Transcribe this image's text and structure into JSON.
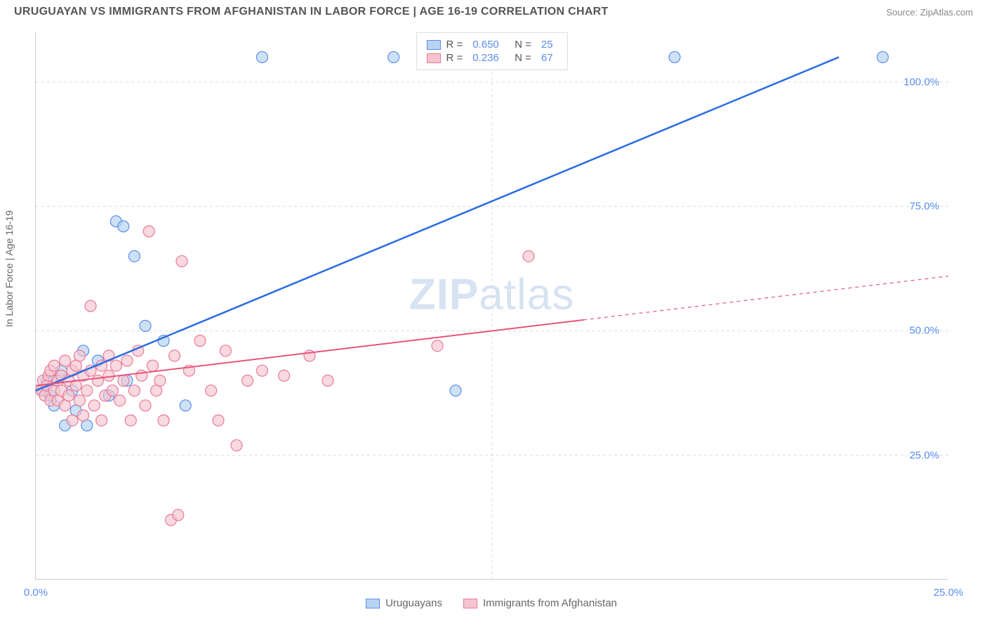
{
  "header": {
    "title": "URUGUAYAN VS IMMIGRANTS FROM AFGHANISTAN IN LABOR FORCE | AGE 16-19 CORRELATION CHART",
    "source": "Source: ZipAtlas.com"
  },
  "y_axis_label": "In Labor Force | Age 16-19",
  "watermark": {
    "part1": "ZIP",
    "part2": "atlas"
  },
  "chart": {
    "type": "scatter",
    "background_color": "#ffffff",
    "grid_color": "#dddddd",
    "grid_dash": "4,4",
    "axis_color": "#cccccc",
    "tick_label_color": "#5b8def",
    "tick_fontsize": 15,
    "xlim": [
      0,
      25
    ],
    "ylim": [
      0,
      110
    ],
    "x_ticks": [
      {
        "pos": 0,
        "label": "0.0%"
      },
      {
        "pos": 12.5,
        "label": ""
      },
      {
        "pos": 25,
        "label": "25.0%"
      }
    ],
    "y_ticks": [
      {
        "pos": 25,
        "label": "25.0%"
      },
      {
        "pos": 50,
        "label": "50.0%"
      },
      {
        "pos": 75,
        "label": "75.0%"
      },
      {
        "pos": 100,
        "label": "100.0%"
      }
    ],
    "series": [
      {
        "name": "Uruguayans",
        "marker_fill": "#b8d4f0",
        "marker_stroke": "#5b8def",
        "marker_opacity": 0.7,
        "marker_radius": 8,
        "line_color": "#2b6de0",
        "line_width": 2.5,
        "line_dash_after_x": null,
        "R": "0.650",
        "N": "25",
        "regression": {
          "x1": 0,
          "y1": 38,
          "x2": 22,
          "y2": 105
        },
        "points": [
          {
            "x": 0.2,
            "y": 38
          },
          {
            "x": 0.3,
            "y": 40
          },
          {
            "x": 0.4,
            "y": 37
          },
          {
            "x": 0.5,
            "y": 35
          },
          {
            "x": 0.5,
            "y": 40
          },
          {
            "x": 0.7,
            "y": 42
          },
          {
            "x": 0.8,
            "y": 31
          },
          {
            "x": 1.0,
            "y": 38
          },
          {
            "x": 1.1,
            "y": 34
          },
          {
            "x": 1.3,
            "y": 46
          },
          {
            "x": 1.4,
            "y": 31
          },
          {
            "x": 1.7,
            "y": 44
          },
          {
            "x": 2.0,
            "y": 37
          },
          {
            "x": 2.2,
            "y": 72
          },
          {
            "x": 2.4,
            "y": 71
          },
          {
            "x": 2.5,
            "y": 40
          },
          {
            "x": 2.7,
            "y": 65
          },
          {
            "x": 3.0,
            "y": 51
          },
          {
            "x": 3.5,
            "y": 48
          },
          {
            "x": 4.1,
            "y": 35
          },
          {
            "x": 6.2,
            "y": 105
          },
          {
            "x": 9.8,
            "y": 105
          },
          {
            "x": 11.5,
            "y": 38
          },
          {
            "x": 17.5,
            "y": 105
          },
          {
            "x": 23.2,
            "y": 105
          }
        ]
      },
      {
        "name": "Immigrants from Afghanistan",
        "marker_fill": "#f5c4d0",
        "marker_stroke": "#e87a9a",
        "marker_opacity": 0.65,
        "marker_radius": 8,
        "line_color": "#e8547a",
        "line_width": 2,
        "line_dash_after_x": 15,
        "R": "0.236",
        "N": "67",
        "regression": {
          "x1": 0,
          "y1": 39,
          "x2": 25,
          "y2": 61
        },
        "points": [
          {
            "x": 0.15,
            "y": 38
          },
          {
            "x": 0.2,
            "y": 40
          },
          {
            "x": 0.25,
            "y": 37
          },
          {
            "x": 0.3,
            "y": 39
          },
          {
            "x": 0.35,
            "y": 41
          },
          {
            "x": 0.4,
            "y": 36
          },
          {
            "x": 0.4,
            "y": 42
          },
          {
            "x": 0.5,
            "y": 38
          },
          {
            "x": 0.5,
            "y": 43
          },
          {
            "x": 0.6,
            "y": 40
          },
          {
            "x": 0.6,
            "y": 36
          },
          {
            "x": 0.7,
            "y": 41
          },
          {
            "x": 0.7,
            "y": 38
          },
          {
            "x": 0.8,
            "y": 44
          },
          {
            "x": 0.8,
            "y": 35
          },
          {
            "x": 0.9,
            "y": 40
          },
          {
            "x": 0.9,
            "y": 37
          },
          {
            "x": 1.0,
            "y": 42
          },
          {
            "x": 1.0,
            "y": 32
          },
          {
            "x": 1.1,
            "y": 39
          },
          {
            "x": 1.1,
            "y": 43
          },
          {
            "x": 1.2,
            "y": 36
          },
          {
            "x": 1.2,
            "y": 45
          },
          {
            "x": 1.3,
            "y": 33
          },
          {
            "x": 1.3,
            "y": 41
          },
          {
            "x": 1.4,
            "y": 38
          },
          {
            "x": 1.5,
            "y": 55
          },
          {
            "x": 1.5,
            "y": 42
          },
          {
            "x": 1.6,
            "y": 35
          },
          {
            "x": 1.7,
            "y": 40
          },
          {
            "x": 1.8,
            "y": 43
          },
          {
            "x": 1.8,
            "y": 32
          },
          {
            "x": 1.9,
            "y": 37
          },
          {
            "x": 2.0,
            "y": 45
          },
          {
            "x": 2.0,
            "y": 41
          },
          {
            "x": 2.1,
            "y": 38
          },
          {
            "x": 2.2,
            "y": 43
          },
          {
            "x": 2.3,
            "y": 36
          },
          {
            "x": 2.4,
            "y": 40
          },
          {
            "x": 2.5,
            "y": 44
          },
          {
            "x": 2.6,
            "y": 32
          },
          {
            "x": 2.7,
            "y": 38
          },
          {
            "x": 2.8,
            "y": 46
          },
          {
            "x": 2.9,
            "y": 41
          },
          {
            "x": 3.0,
            "y": 35
          },
          {
            "x": 3.1,
            "y": 70
          },
          {
            "x": 3.2,
            "y": 43
          },
          {
            "x": 3.3,
            "y": 38
          },
          {
            "x": 3.4,
            "y": 40
          },
          {
            "x": 3.5,
            "y": 32
          },
          {
            "x": 3.7,
            "y": 12
          },
          {
            "x": 3.8,
            "y": 45
          },
          {
            "x": 3.9,
            "y": 13
          },
          {
            "x": 4.0,
            "y": 64
          },
          {
            "x": 4.2,
            "y": 42
          },
          {
            "x": 4.5,
            "y": 48
          },
          {
            "x": 4.8,
            "y": 38
          },
          {
            "x": 5.0,
            "y": 32
          },
          {
            "x": 5.2,
            "y": 46
          },
          {
            "x": 5.5,
            "y": 27
          },
          {
            "x": 5.8,
            "y": 40
          },
          {
            "x": 6.2,
            "y": 42
          },
          {
            "x": 6.8,
            "y": 41
          },
          {
            "x": 7.5,
            "y": 45
          },
          {
            "x": 8.0,
            "y": 40
          },
          {
            "x": 11.0,
            "y": 47
          },
          {
            "x": 13.5,
            "y": 65
          }
        ]
      }
    ]
  },
  "legend_top": {
    "border_color": "#dddddd",
    "rows": [
      {
        "swatch_fill": "#b8d4f0",
        "swatch_stroke": "#5b8def",
        "R_label": "R =",
        "R_val": "0.650",
        "N_label": "N =",
        "N_val": "25"
      },
      {
        "swatch_fill": "#f5c4d0",
        "swatch_stroke": "#e87a9a",
        "R_label": "R =",
        "R_val": "0.236",
        "N_label": "N =",
        "N_val": "67"
      }
    ]
  },
  "legend_bottom": {
    "items": [
      {
        "swatch_fill": "#b8d4f0",
        "swatch_stroke": "#5b8def",
        "label": "Uruguayans"
      },
      {
        "swatch_fill": "#f5c4d0",
        "swatch_stroke": "#e87a9a",
        "label": "Immigrants from Afghanistan"
      }
    ]
  }
}
